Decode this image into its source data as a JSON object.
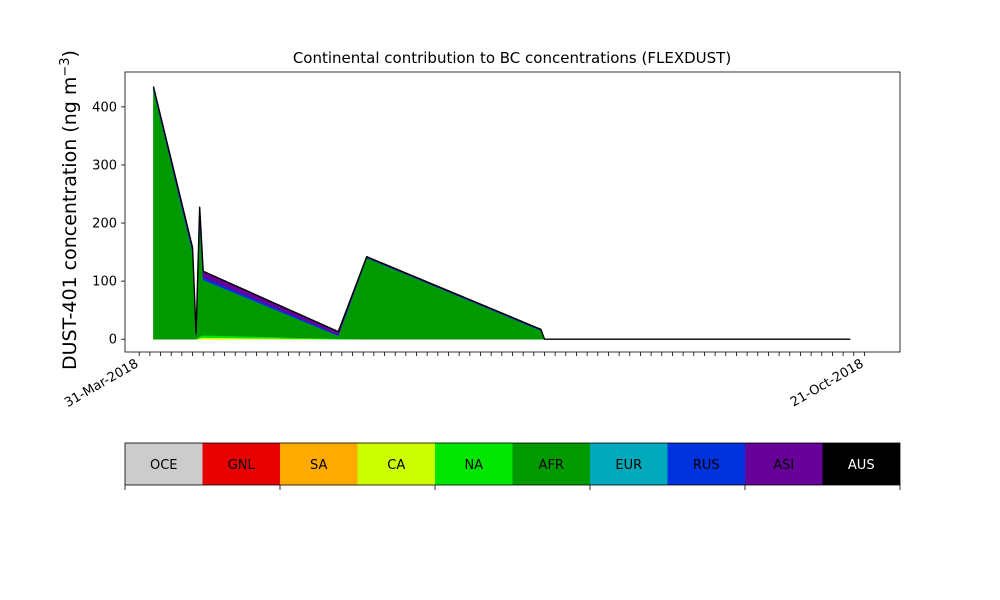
{
  "chart_data": {
    "type": "area",
    "stacked": true,
    "title": "Continental contribution to BC concentrations (FLEXDUST)",
    "ylabel": "DUST-401 concentration (ng m",
    "ylabel_superscript": "−3",
    "ylabel_suffix": ")",
    "ylim": [
      -22,
      460
    ],
    "yticks": [
      0,
      100,
      200,
      300,
      400
    ],
    "x_start_label": "31-Mar-2018",
    "x_end_label": "21-Oct-2018",
    "x": [
      "2018-04-04",
      "2018-04-15",
      "2018-04-16",
      "2018-04-17",
      "2018-04-18",
      "2018-05-26",
      "2018-06-03",
      "2018-07-22",
      "2018-07-23",
      "2018-10-17"
    ],
    "series": [
      {
        "name": "OCE",
        "color": "#cccccc",
        "values": [
          0,
          0,
          0,
          0,
          0,
          0,
          0,
          0,
          0,
          0
        ]
      },
      {
        "name": "GNL",
        "color": "#e60000",
        "values": [
          0,
          0,
          0,
          0,
          0,
          0,
          0,
          0,
          0,
          0
        ]
      },
      {
        "name": "SA",
        "color": "#ffaa00",
        "values": [
          0,
          0,
          0,
          0,
          0,
          0,
          0,
          0,
          0,
          0
        ]
      },
      {
        "name": "CA",
        "color": "#ccff00",
        "values": [
          0,
          0,
          0,
          2,
          3,
          0,
          0,
          0,
          0,
          0
        ]
      },
      {
        "name": "NA",
        "color": "#00e600",
        "values": [
          0,
          0,
          0,
          3,
          4,
          1,
          0,
          0,
          0,
          0
        ]
      },
      {
        "name": "AFR",
        "color": "#009900",
        "values": [
          430,
          150,
          5,
          200,
          95,
          5,
          140,
          15,
          0,
          0
        ]
      },
      {
        "name": "EUR",
        "color": "#00aabb",
        "values": [
          0,
          0,
          0,
          0,
          0,
          0,
          0,
          0,
          0,
          0
        ]
      },
      {
        "name": "RUS",
        "color": "#0033dd",
        "values": [
          2,
          3,
          2,
          5,
          5,
          2,
          1,
          1,
          0,
          0
        ]
      },
      {
        "name": "ASI",
        "color": "#660099",
        "values": [
          3,
          5,
          3,
          18,
          10,
          5,
          1,
          1,
          0,
          0
        ]
      },
      {
        "name": "AUS",
        "color": "#000000",
        "values": [
          0,
          0,
          0,
          0,
          0,
          0,
          0,
          0,
          0,
          0
        ]
      }
    ],
    "legend": {
      "placement": "bottom",
      "entries": [
        "OCE",
        "GNL",
        "SA",
        "CA",
        "NA",
        "AFR",
        "EUR",
        "RUS",
        "ASI",
        "AUS"
      ],
      "colors": [
        "#cccccc",
        "#e60000",
        "#ffaa00",
        "#ccff00",
        "#00e600",
        "#009900",
        "#00aabb",
        "#0033dd",
        "#660099",
        "#000000"
      ]
    }
  }
}
